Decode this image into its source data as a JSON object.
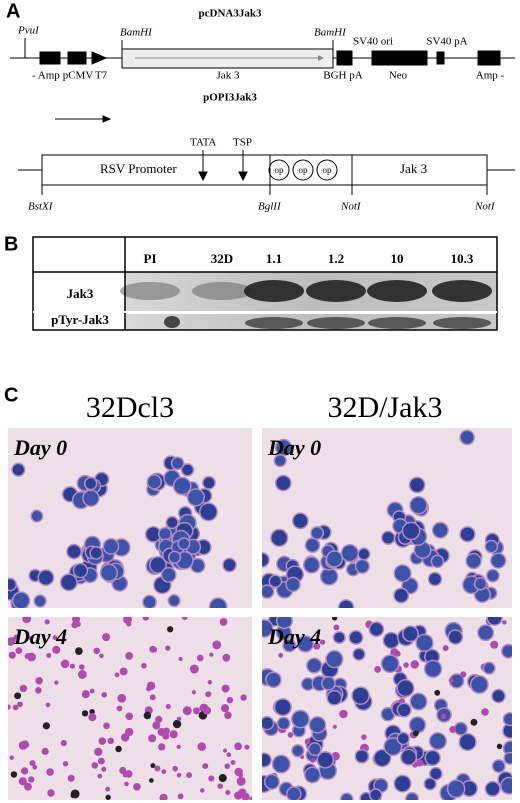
{
  "panel_a": {
    "label": "A",
    "map1": {
      "title": "pcDNA3Jak3",
      "sites": [
        "PvuI",
        "BamHI",
        "BamHI"
      ],
      "elements": [
        "- Amp",
        "pCMV",
        "T7",
        "Jak 3",
        "BGH pA",
        "SV40 ori",
        "Neo",
        "SV40 pA",
        "Amp -"
      ]
    },
    "map2": {
      "title": "pOPI3Jak3",
      "markers": [
        "TATA",
        "TSP"
      ],
      "promoter": "RSV Promoter",
      "operators": [
        "op",
        "op",
        "op"
      ],
      "gene": "Jak 3",
      "sites": [
        "BstXI",
        "BglII",
        "NotI",
        "NotI"
      ]
    }
  },
  "panel_b": {
    "label": "B",
    "columns": [
      "PI",
      "32D",
      "1.1",
      "1.2",
      "10",
      "10.3"
    ],
    "rows": [
      "Jak3",
      "pTyr-Jak3"
    ]
  },
  "panel_c": {
    "label": "C",
    "columns": [
      "32Dcl3",
      "32D/Jak3"
    ],
    "images": [
      "Day 0",
      "Day 0",
      "Day 4",
      "Day 4"
    ]
  }
}
